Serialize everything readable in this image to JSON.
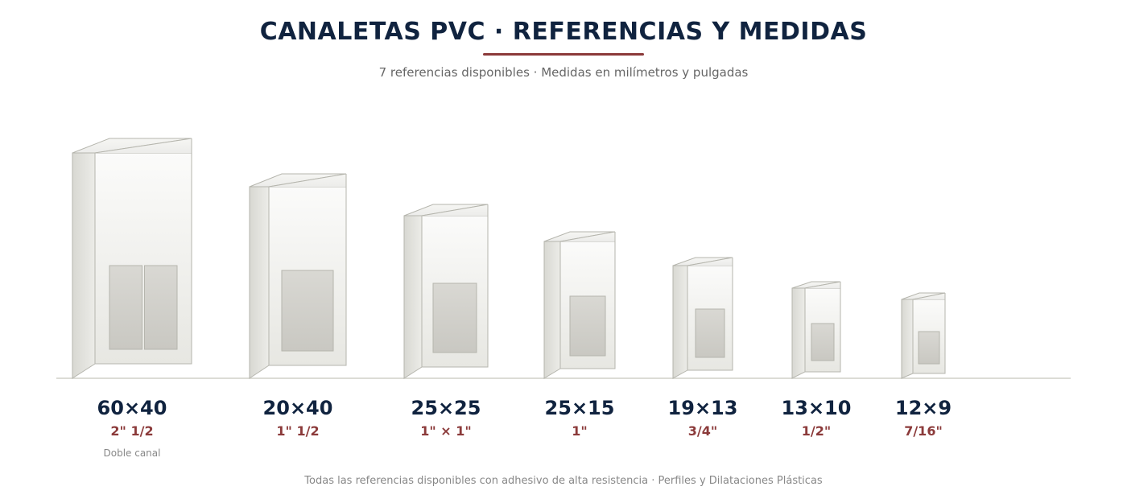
{
  "header": {
    "title": "CANALETAS PVC · REFERENCIAS Y MEDIDAS",
    "subtitle": "7 referencias disponibles · Medidas en milímetros y pulgadas"
  },
  "colors": {
    "title": "#10233f",
    "accent": "#8b3a3a",
    "profile_face": "#f2f2ef",
    "profile_side": "#dcdcd6",
    "channel": "#cfcec8",
    "outline": "#b5b5ad",
    "baseline": "#dcdcd6"
  },
  "profiles": [
    {
      "mm": "60×40",
      "inch": "2\" 1/2",
      "note": "Doble canal",
      "channels": 2
    },
    {
      "mm": "20×40",
      "inch": "1\" 1/2",
      "note": "",
      "channels": 1
    },
    {
      "mm": "25×25",
      "inch": "1\" × 1\"",
      "note": "",
      "channels": 1
    },
    {
      "mm": "25×15",
      "inch": "1\"",
      "note": "",
      "channels": 1
    },
    {
      "mm": "19×13",
      "inch": "3/4\"",
      "note": "",
      "channels": 1
    },
    {
      "mm": "13×10",
      "inch": "1/2\"",
      "note": "",
      "channels": 1
    },
    {
      "mm": "12×9",
      "inch": "7/16\"",
      "note": "",
      "channels": 1
    }
  ],
  "footer": "Todas las referencias disponibles con adhesivo de alta resistencia · Perfiles y Dilataciones Plásticas"
}
